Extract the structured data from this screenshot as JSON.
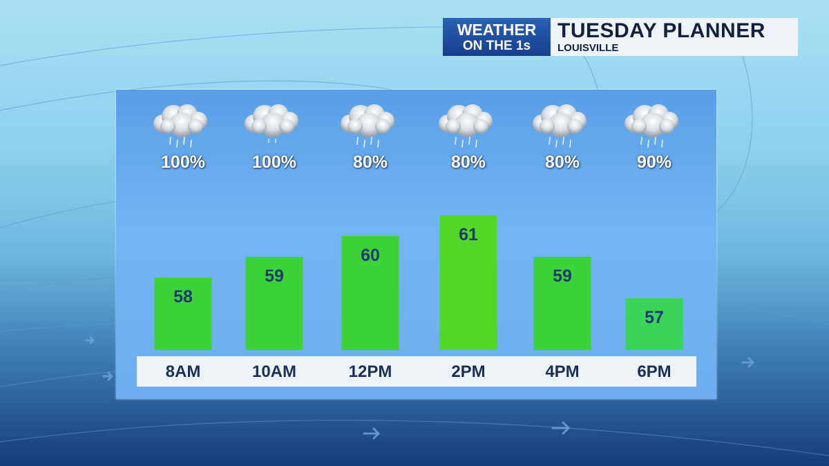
{
  "header": {
    "brand_line1": "WEATHER",
    "brand_line2": "ON THE 1s",
    "title": "TUESDAY PLANNER",
    "subtitle": "LOUISVILLE"
  },
  "chart_data": {
    "type": "bar",
    "categories": [
      "8AM",
      "10AM",
      "12PM",
      "2PM",
      "4PM",
      "6PM"
    ],
    "series": [
      {
        "values": [
          58,
          59,
          60,
          61,
          59,
          57
        ]
      }
    ],
    "rain_chance": [
      "100%",
      "100%",
      "80%",
      "80%",
      "80%",
      "90%"
    ],
    "conditions": [
      "rain-cloud-icon",
      "cloud-icon",
      "rain-cloud-icon",
      "rain-cloud-icon",
      "rain-cloud-icon",
      "rain-cloud-icon"
    ],
    "bar_colors": [
      "#3ed23a",
      "#3ed23a",
      "#3ed23a",
      "#53d826",
      "#3ed23a",
      "#3ad45a"
    ],
    "ylim": [
      54,
      63
    ],
    "grid": false
  }
}
